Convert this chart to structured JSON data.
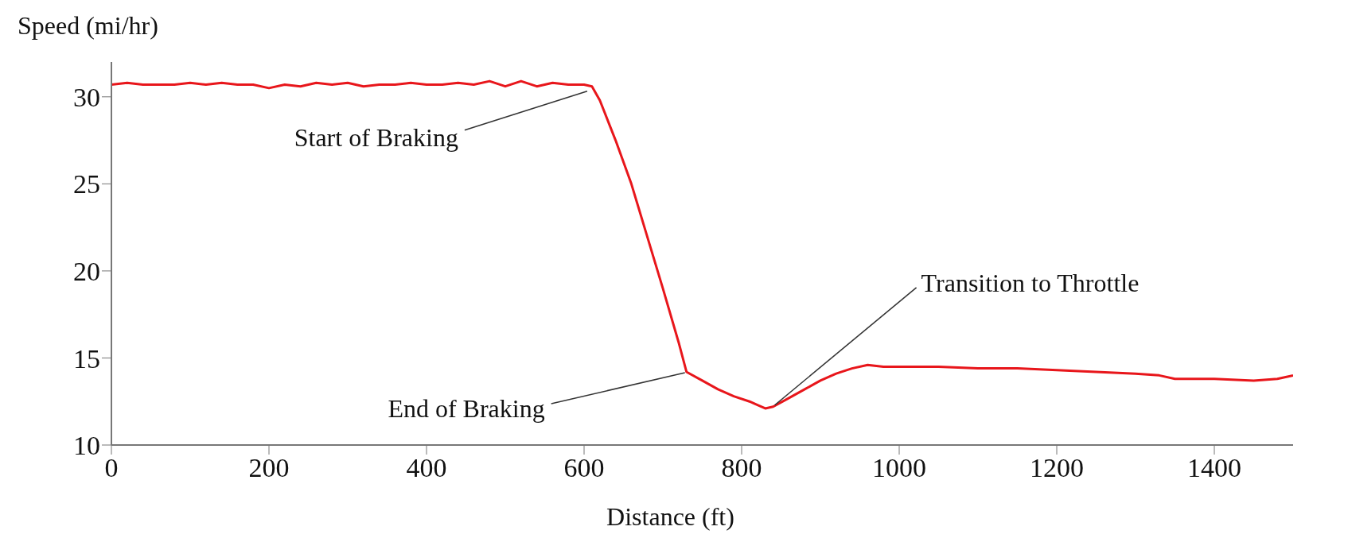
{
  "chart_data": {
    "type": "line",
    "xlabel": "Distance (ft)",
    "ylabel": "Speed (mi/hr)",
    "x": [
      0,
      20,
      40,
      60,
      80,
      100,
      120,
      140,
      160,
      180,
      200,
      220,
      240,
      260,
      280,
      300,
      320,
      340,
      360,
      380,
      400,
      420,
      440,
      460,
      480,
      500,
      520,
      540,
      560,
      580,
      600,
      610,
      620,
      640,
      660,
      680,
      700,
      720,
      730,
      750,
      770,
      790,
      810,
      830,
      840,
      860,
      880,
      900,
      920,
      940,
      960,
      980,
      1000,
      1050,
      1100,
      1150,
      1200,
      1250,
      1300,
      1330,
      1350,
      1400,
      1450,
      1480,
      1500
    ],
    "series": [
      {
        "color": "#e8161b",
        "values": [
          30.7,
          30.8,
          30.7,
          30.7,
          30.7,
          30.8,
          30.7,
          30.8,
          30.7,
          30.7,
          30.5,
          30.7,
          30.6,
          30.8,
          30.7,
          30.8,
          30.6,
          30.7,
          30.7,
          30.8,
          30.7,
          30.7,
          30.8,
          30.7,
          30.9,
          30.6,
          30.9,
          30.6,
          30.8,
          30.7,
          30.7,
          30.6,
          29.8,
          27.5,
          25.0,
          22.0,
          19.0,
          15.9,
          14.2,
          13.7,
          13.2,
          12.8,
          12.5,
          12.1,
          12.2,
          12.7,
          13.2,
          13.7,
          14.1,
          14.4,
          14.6,
          14.5,
          14.5,
          14.5,
          14.4,
          14.4,
          14.3,
          14.2,
          14.1,
          14.0,
          13.8,
          13.8,
          13.7,
          13.8,
          14.0
        ]
      }
    ],
    "xlim": [
      0,
      1500
    ],
    "ylim": [
      10,
      32
    ],
    "xticks": [
      0,
      200,
      400,
      600,
      800,
      1000,
      1200,
      1400
    ],
    "yticks": [
      10,
      15,
      20,
      25,
      30
    ],
    "grid": false,
    "legend": false,
    "marker": "none",
    "line_style": "solid",
    "annotations": [
      {
        "text": "Start of Braking",
        "x": 610,
        "y": 30.6
      },
      {
        "text": "End of Braking",
        "x": 730,
        "y": 14.2
      },
      {
        "text": "Transition to Throttle",
        "x": 840,
        "y": 12.2
      }
    ]
  }
}
